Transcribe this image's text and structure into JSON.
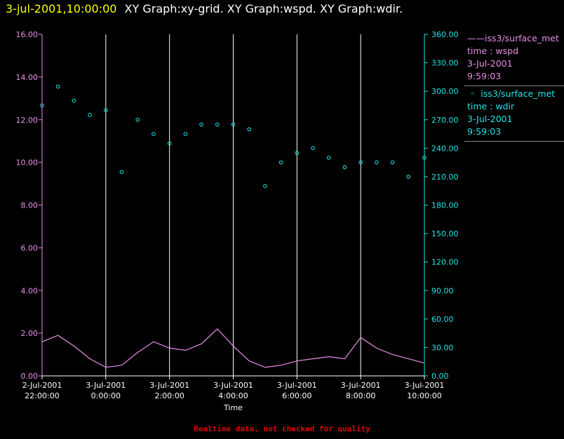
{
  "header": {
    "timestamp": "3-jul-2001,10:00:00",
    "graphs": "XY Graph:xy-grid.  XY Graph:wspd.  XY Graph:wdir."
  },
  "legend": {
    "wspd": {
      "name": "iss3/surface_met",
      "field": "time : wspd",
      "date": "3-Jul-2001",
      "time": "9:59:03"
    },
    "wdir": {
      "name": "iss3/surface_met",
      "field": "time : wdir",
      "date": "3-Jul-2001",
      "time": "9:59:03"
    }
  },
  "footer": "Realtime data, not checked for quality",
  "colors": {
    "wspd": "#e88ee8",
    "wdir": "#22e6e6",
    "grid": "#ffffff",
    "background": "#000000",
    "title": "#ffff00",
    "footer": "#e00000"
  },
  "chart_data": {
    "type": "line",
    "xlabel": "Time",
    "x_range_hours": [
      0,
      12
    ],
    "x_ticks": [
      {
        "hour": 0,
        "date": "2-Jul-2001",
        "time": "22:00:00"
      },
      {
        "hour": 2,
        "date": "3-Jul-2001",
        "time": "0:00:00"
      },
      {
        "hour": 4,
        "date": "3-Jul-2001",
        "time": "2:00:00"
      },
      {
        "hour": 6,
        "date": "3-Jul-2001",
        "time": "4:00:00"
      },
      {
        "hour": 8,
        "date": "3-Jul-2001",
        "time": "6:00:00"
      },
      {
        "hour": 10,
        "date": "3-Jul-2001",
        "time": "8:00:00"
      },
      {
        "hour": 12,
        "date": "3-Jul-2001",
        "time": "10:00:00"
      }
    ],
    "left_axis": {
      "ylim": [
        0,
        16
      ],
      "ticks": [
        "0.00",
        "2.00",
        "4.00",
        "6.00",
        "8.00",
        "10.00",
        "12.00",
        "14.00",
        "16.00"
      ]
    },
    "right_axis": {
      "ylim": [
        0,
        360
      ],
      "ticks": [
        "0.00",
        "30.00",
        "60.00",
        "90.00",
        "120.00",
        "150.00",
        "180.00",
        "210.00",
        "240.00",
        "270.00",
        "300.00",
        "330.00",
        "360.00"
      ]
    },
    "grid": "vertical lines at each x tick",
    "series": [
      {
        "name": "wspd",
        "style": "line",
        "axis": "left",
        "x": [
          0,
          0.5,
          1,
          1.5,
          2,
          2.5,
          3,
          3.5,
          4,
          4.5,
          5,
          5.5,
          6,
          6.5,
          7,
          7.5,
          8,
          8.5,
          9,
          9.5,
          10,
          10.5,
          11,
          11.5,
          12
        ],
        "y": [
          1.6,
          1.9,
          1.4,
          0.8,
          0.4,
          0.5,
          1.1,
          1.6,
          1.3,
          1.2,
          1.5,
          2.2,
          1.4,
          0.7,
          0.4,
          0.5,
          0.7,
          0.8,
          0.9,
          0.8,
          1.8,
          1.3,
          1.0,
          0.8,
          0.6
        ]
      },
      {
        "name": "wdir",
        "style": "scatter",
        "axis": "right",
        "x": [
          0,
          0.5,
          1,
          1.5,
          2,
          2.5,
          3,
          3.5,
          4,
          4.5,
          5,
          5.5,
          6,
          6.5,
          7,
          7.5,
          8,
          8.5,
          9,
          9.5,
          10,
          10.5,
          11,
          11.5,
          12
        ],
        "y": [
          285,
          305,
          290,
          275,
          280,
          215,
          270,
          255,
          245,
          255,
          265,
          265,
          265,
          260,
          200,
          225,
          235,
          240,
          230,
          220,
          225,
          225,
          225,
          210,
          230
        ]
      }
    ]
  }
}
